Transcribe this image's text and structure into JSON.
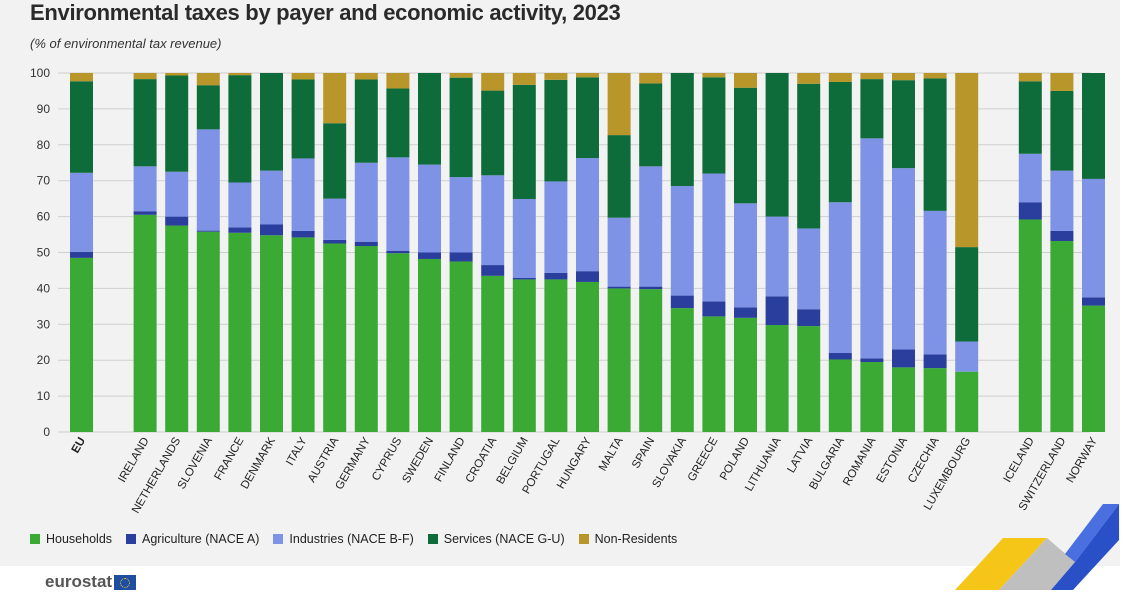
{
  "title": "Environmental taxes by payer and economic activity, 2023",
  "subtitle": "(% of environmental tax revenue)",
  "logo_text": "eurostat",
  "colors": {
    "households": "#3aaa35",
    "agriculture": "#2a3e9e",
    "industries": "#7f93e6",
    "services": "#0e6b3a",
    "non_residents": "#b8962a",
    "background": "#f2f2f2",
    "grid": "#cfcfcf"
  },
  "chart_data": {
    "type": "bar",
    "stacked": true,
    "title": "Environmental taxes by payer and economic activity, 2023",
    "subtitle": "(% of environmental tax revenue)",
    "ylim": [
      0,
      100
    ],
    "yticks": [
      0,
      10,
      20,
      30,
      40,
      50,
      60,
      70,
      80,
      90,
      100
    ],
    "grid": true,
    "legend_position": "bottom",
    "categories": [
      "EU",
      "IRELAND",
      "NETHERLANDS",
      "SLOVENIA",
      "FRANCE",
      "DENMARK",
      "ITALY",
      "AUSTRIA",
      "GERMANY",
      "CYPRUS",
      "SWEDEN",
      "FINLAND",
      "CROATIA",
      "BELGIUM",
      "PORTUGAL",
      "HUNGARY",
      "MALTA",
      "SPAIN",
      "SLOVAKIA",
      "GREECE",
      "POLAND",
      "LITHUANIA",
      "LATVIA",
      "BULGARIA",
      "ROMANIA",
      "ESTONIA",
      "CZECHIA",
      "LUXEMBOURG",
      "ICELAND",
      "SWITZERLAND",
      "NORWAY"
    ],
    "groups": [
      [
        0,
        0
      ],
      [
        1,
        27
      ],
      [
        28,
        30
      ]
    ],
    "series": [
      {
        "name": "Households",
        "key": "households",
        "values": [
          48.5,
          60.5,
          57.5,
          55.8,
          55.5,
          54.8,
          54.2,
          52.5,
          51.8,
          49.8,
          48.2,
          47.5,
          43.5,
          42.5,
          42.5,
          41.8,
          40.0,
          39.8,
          34.5,
          32.2,
          31.8,
          29.8,
          29.5,
          20.2,
          19.5,
          18.0,
          17.8,
          16.8,
          59.2,
          53.2,
          35.2
        ]
      },
      {
        "name": "Agriculture (NACE A)",
        "key": "agriculture",
        "values": [
          1.7,
          1.0,
          2.5,
          0.3,
          1.5,
          3.0,
          1.8,
          1.0,
          1.2,
          0.7,
          1.8,
          2.5,
          3.0,
          0.4,
          1.8,
          3.0,
          0.5,
          0.7,
          3.5,
          4.2,
          2.9,
          8.0,
          4.7,
          1.8,
          1.0,
          5.0,
          3.8,
          0.0,
          4.8,
          2.8,
          2.3
        ]
      },
      {
        "name": "Industries (NACE B-F)",
        "key": "industries",
        "values": [
          22.0,
          12.5,
          12.5,
          28.2,
          12.5,
          15.0,
          20.2,
          11.5,
          22.0,
          26.0,
          24.5,
          21.0,
          25.0,
          22.0,
          25.5,
          31.5,
          19.2,
          33.5,
          30.5,
          35.6,
          29.0,
          22.2,
          22.5,
          42.0,
          61.3,
          50.5,
          40.0,
          8.4,
          13.5,
          16.8,
          33.0
        ]
      },
      {
        "name": "Services (NACE G-U)",
        "key": "services",
        "values": [
          25.5,
          24.3,
          26.8,
          12.3,
          29.9,
          27.2,
          22.0,
          21.0,
          23.2,
          19.2,
          25.5,
          27.7,
          23.6,
          31.8,
          28.3,
          22.5,
          23.0,
          23.1,
          31.5,
          26.8,
          32.2,
          40.0,
          40.3,
          33.5,
          16.5,
          24.5,
          36.9,
          26.3,
          20.2,
          22.2,
          29.5
        ]
      },
      {
        "name": "Non-Residents",
        "key": "non_residents",
        "values": [
          2.3,
          1.7,
          0.7,
          3.4,
          0.6,
          0.0,
          1.8,
          14.0,
          1.8,
          4.3,
          0.0,
          1.3,
          4.9,
          3.3,
          1.9,
          1.2,
          17.3,
          2.9,
          0.0,
          1.2,
          4.1,
          0.0,
          3.0,
          2.5,
          1.7,
          2.0,
          1.5,
          48.5,
          2.3,
          5.0,
          0.0
        ]
      }
    ]
  }
}
